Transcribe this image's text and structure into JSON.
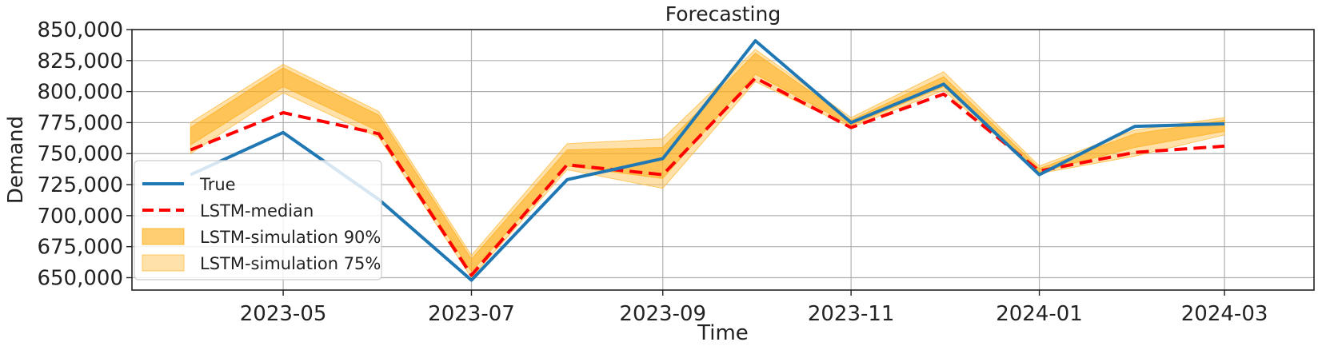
{
  "chart_data": {
    "type": "line",
    "title": "Forecasting",
    "xlabel": "Time",
    "ylabel": "Demand",
    "ylim": [
      640000,
      850000
    ],
    "xlim": [
      "2023-03-13",
      "2024-03-30"
    ],
    "grid": true,
    "legend_placement": "lower-left",
    "x": [
      "2023-04-01",
      "2023-05-01",
      "2023-06-01",
      "2023-07-01",
      "2023-08-01",
      "2023-09-01",
      "2023-10-01",
      "2023-11-01",
      "2023-12-01",
      "2024-01-01",
      "2024-02-01",
      "2024-03-01"
    ],
    "xticks": [
      "2023-05",
      "2023-07",
      "2023-09",
      "2023-11",
      "2024-01",
      "2024-03"
    ],
    "yticks": [
      "650,000",
      "675,000",
      "700,000",
      "725,000",
      "750,000",
      "775,000",
      "800,000",
      "825,000",
      "850,000"
    ],
    "series": [
      {
        "name": "True",
        "color": "#1f77b4",
        "style": "solid",
        "values": [
          733000,
          767000,
          713000,
          648000,
          729000,
          746000,
          841000,
          775000,
          806000,
          733000,
          772000,
          774000
        ]
      },
      {
        "name": "LSTM-median",
        "color": "#ff0000",
        "style": "dashed",
        "values": [
          753000,
          783000,
          766000,
          652000,
          741000,
          733000,
          811000,
          771000,
          798000,
          736000,
          751000,
          756000
        ]
      }
    ],
    "bands": [
      {
        "name": "LSTM-simulation 90%",
        "color": "#ffa500",
        "opacity": 0.55,
        "lower": [
          757000,
          804000,
          768000,
          655000,
          740000,
          730000,
          814000,
          773000,
          804000,
          735000,
          755000,
          768000
        ],
        "upper": [
          771000,
          819000,
          781000,
          665000,
          753000,
          755000,
          831000,
          777000,
          812000,
          738000,
          766000,
          777000
        ]
      },
      {
        "name": "LSTM-simulation 75%",
        "color": "#ffb833",
        "opacity": 0.42,
        "lower": [
          750000,
          799000,
          763000,
          650000,
          737000,
          722000,
          808000,
          771000,
          801000,
          734000,
          748000,
          765000
        ],
        "upper": [
          775000,
          822000,
          784000,
          668000,
          758000,
          762000,
          834000,
          779000,
          816000,
          740000,
          769000,
          779000
        ]
      }
    ]
  }
}
